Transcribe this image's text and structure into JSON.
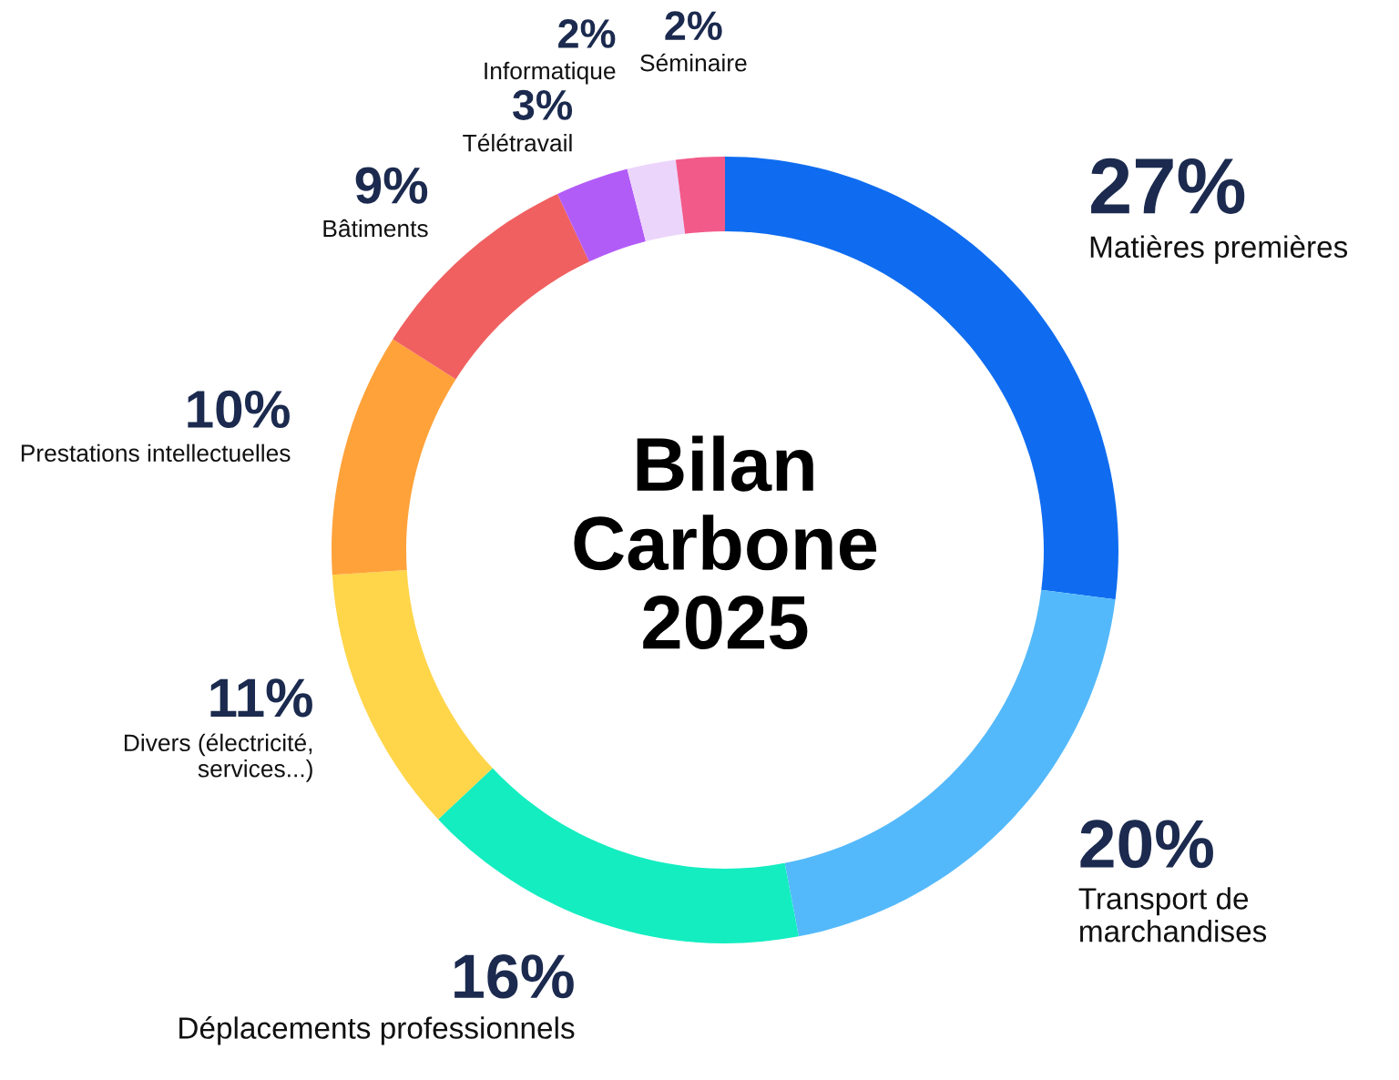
{
  "chart_data": {
    "type": "donut",
    "title": "Bilan\nCarbone\n2025",
    "categories": [
      "Matières premières",
      "Transport de\nmarchandises",
      "Déplacements professionnels",
      "Divers (électricité,\nservices...)",
      "Prestations intellectuelles",
      "Bâtiments",
      "Télétravail",
      "Informatique",
      "Séminaire"
    ],
    "values": [
      27,
      20,
      16,
      11,
      10,
      9,
      3,
      2,
      2
    ],
    "colors": [
      "#0f6cf0",
      "#54b9fb",
      "#14edc0",
      "#ffd54a",
      "#ffa23a",
      "#f06060",
      "#b25cf8",
      "#ecd5fb",
      "#f25a8a"
    ],
    "value_labels": [
      "27%",
      "20%",
      "16%",
      "11%",
      "10%",
      "9%",
      "3%",
      "2%",
      "2%"
    ],
    "legend": false
  }
}
